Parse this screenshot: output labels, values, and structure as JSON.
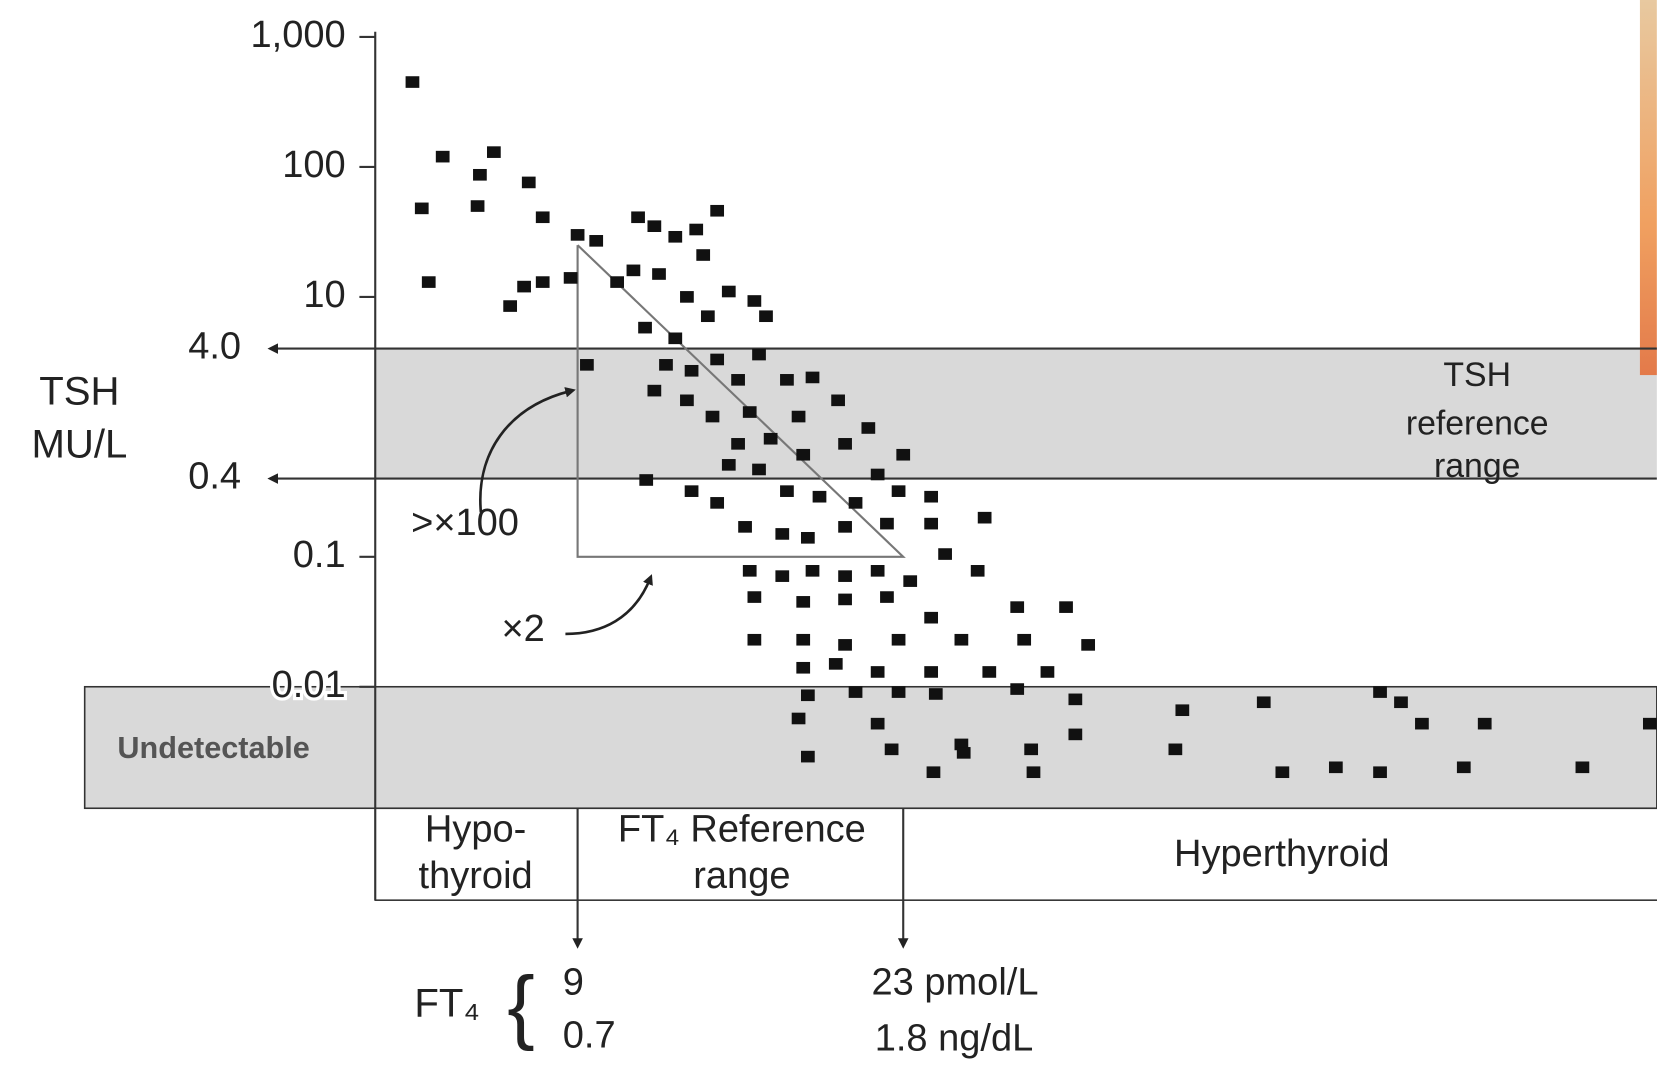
{
  "chart_data": {
    "type": "scatter",
    "y_label": [
      "TSH",
      "MU/L"
    ],
    "log_y": true,
    "ylim": [
      0.001,
      1000
    ],
    "yticks": [
      {
        "value": 1000,
        "label": "1,000"
      },
      100,
      10,
      0.1,
      0.01
    ],
    "xlim": [
      0.3,
      55.4
    ],
    "y_ref_lines": [
      {
        "value": 4,
        "label": "4.0"
      },
      {
        "value": 0.4,
        "label": "0.4"
      }
    ],
    "tsh_reference_label": [
      "TSH",
      "reference",
      "range"
    ],
    "undetectable_label": "Undetectable",
    "regions": {
      "hypo": [
        "Hypo-",
        "thyroid"
      ],
      "reference": [
        "FT₄ Reference",
        "range"
      ],
      "hyper": "Hyperthyroid"
    },
    "ft4_label": "FT₄",
    "ft4_limits": [
      {
        "value": 9,
        "label": "9",
        "alt_label": "0.7"
      },
      {
        "value": 23,
        "label": "23 pmol/L",
        "alt_label": "1.8 ng/dL"
      }
    ],
    "annotations": [
      ">×100",
      "×2"
    ],
    "color": "#111111",
    "x": [
      1.9,
      2.3,
      2.6,
      3.2,
      4.7,
      4.8,
      5.4,
      6.9,
      7.5,
      6.1,
      6.7,
      7.5,
      8.7,
      9.0,
      9.4,
      9.8,
      11.6,
      12.3,
      13.2,
      14.1,
      15.0,
      14.4,
      10.7,
      11.4,
      12.5,
      13.7,
      14.6,
      15.5,
      16.6,
      17.1,
      11.9,
      13.2,
      12.8,
      13.9,
      12.3,
      15.0,
      15.9,
      16.8,
      13.7,
      14.8,
      16.4,
      18.0,
      19.1,
      18.5,
      20.2,
      21.5,
      17.3,
      15.9,
      15.5,
      16.8,
      18.7,
      20.5,
      23.0,
      21.9,
      11.95,
      13.9,
      15.0,
      18.0,
      19.4,
      20.95,
      22.8,
      24.2,
      24.2,
      26.5,
      16.2,
      17.8,
      18.9,
      20.5,
      22.3,
      24.8,
      16.4,
      17.8,
      19.1,
      20.5,
      21.9,
      23.3,
      26.2,
      16.6,
      18.7,
      20.5,
      22.3,
      24.2,
      27.9,
      30.0,
      16.6,
      18.7,
      20.5,
      22.8,
      25.5,
      28.2,
      30.95,
      18.7,
      20.1,
      21.9,
      24.2,
      26.7,
      29.2,
      18.9,
      20.95,
      22.8,
      24.4,
      27.9,
      30.4,
      35.0,
      38.5,
      43.5,
      44.4,
      45.3,
      48.0,
      55.1,
      18.5,
      21.9,
      30.4,
      25.5,
      18.9,
      22.5,
      24.3,
      25.6,
      28.5,
      28.6,
      34.7,
      39.3,
      41.6,
      43.5,
      47.1,
      52.2
    ],
    "values": [
      450,
      48,
      13,
      120,
      50,
      87,
      130,
      76,
      41,
      8.5,
      12,
      13,
      14,
      30,
      3.0,
      27,
      41,
      35,
      29,
      33,
      46,
      21,
      13,
      16,
      15,
      10,
      7.1,
      11,
      9.3,
      7.1,
      5.8,
      4.8,
      3.0,
      2.7,
      1.9,
      3.3,
      2.3,
      3.6,
      1.6,
      1.2,
      1.3,
      2.3,
      2.4,
      1.2,
      1.6,
      0.98,
      0.81,
      0.74,
      0.51,
      0.47,
      0.61,
      0.74,
      0.61,
      0.43,
      0.39,
      0.32,
      0.26,
      0.32,
      0.29,
      0.26,
      0.32,
      0.29,
      0.18,
      0.2,
      0.17,
      0.15,
      0.14,
      0.17,
      0.18,
      0.105,
      0.078,
      0.071,
      0.078,
      0.071,
      0.078,
      0.065,
      0.078,
      0.049,
      0.045,
      0.047,
      0.049,
      0.034,
      0.041,
      0.041,
      0.023,
      0.023,
      0.021,
      0.023,
      0.023,
      0.023,
      0.021,
      0.014,
      0.015,
      0.013,
      0.013,
      0.013,
      0.013,
      0.0086,
      0.0091,
      0.0091,
      0.0088,
      0.0096,
      0.008,
      0.0066,
      0.0076,
      0.0091,
      0.0076,
      0.0052,
      0.0052,
      0.0052,
      0.0057,
      0.0052,
      0.0043,
      0.0036,
      0.0029,
      0.0033,
      0.0022,
      0.0031,
      0.0033,
      0.0022,
      0.0033,
      0.0022,
      0.0024,
      0.0022,
      0.0024,
      0.0024
    ]
  }
}
